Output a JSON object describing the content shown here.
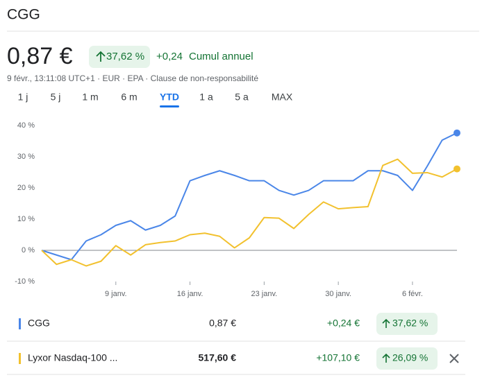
{
  "header": {
    "symbol": "CGG",
    "price": "0,87 €",
    "change_pct": "37,62 %",
    "change": "+0,24",
    "period": "Cumul annuel",
    "meta": "9 févr., 13:11:08 UTC+1 · EUR · EPA · Clause de non-responsabilité"
  },
  "tabs": [
    "1 j",
    "5 j",
    "1 m",
    "6 m",
    "YTD",
    "1 a",
    "5 a",
    "MAX"
  ],
  "active_tab": "YTD",
  "chart_data": {
    "type": "line",
    "categories": [
      null,
      null,
      null,
      null,
      null,
      "9 janv.",
      null,
      null,
      null,
      null,
      "16 janv.",
      null,
      null,
      null,
      null,
      "23 janv.",
      null,
      null,
      null,
      null,
      "30 janv.",
      null,
      null,
      null,
      null,
      "6 févr.",
      null,
      null,
      null
    ],
    "series": [
      {
        "name": "CGG",
        "color": "#4a86e8",
        "values": [
          0,
          -1.5,
          -3,
          3,
          5,
          8,
          9.5,
          6.5,
          8,
          11,
          22.3,
          24,
          25.5,
          24,
          22.3,
          22.3,
          19.2,
          17.7,
          19.2,
          22.3,
          22.3,
          22.3,
          25.5,
          25.5,
          24,
          19.2,
          27,
          35.3,
          37.62
        ]
      },
      {
        "name": "Lyxor Nasdaq-100 ...",
        "color": "#f2c12e",
        "values": [
          0,
          -4.5,
          -3,
          -5,
          -3.5,
          1.5,
          -1.5,
          1.8,
          2.5,
          3,
          5,
          5.5,
          4.5,
          0.8,
          4,
          10.5,
          10.3,
          7,
          11.5,
          15.5,
          13.3,
          13.7,
          14,
          27.2,
          29.2,
          24.7,
          24.9,
          23.5,
          26.09
        ]
      }
    ],
    "ylim": [
      -10,
      40
    ],
    "yticks": [
      {
        "value": -10,
        "label": "-10 %"
      },
      {
        "value": 0,
        "label": "0 %"
      },
      {
        "value": 10,
        "label": "10 %"
      },
      {
        "value": 20,
        "label": "20 %"
      },
      {
        "value": 30,
        "label": "30 %"
      },
      {
        "value": 40,
        "label": "40 %"
      }
    ],
    "grid": false
  },
  "comparison": [
    {
      "price": "0,87 €",
      "change": "+0,24 €",
      "change_pct": "37,62 %"
    },
    {
      "price": "517,60 €",
      "change": "+107,10 €",
      "change_pct": "26,09 %"
    }
  ]
}
